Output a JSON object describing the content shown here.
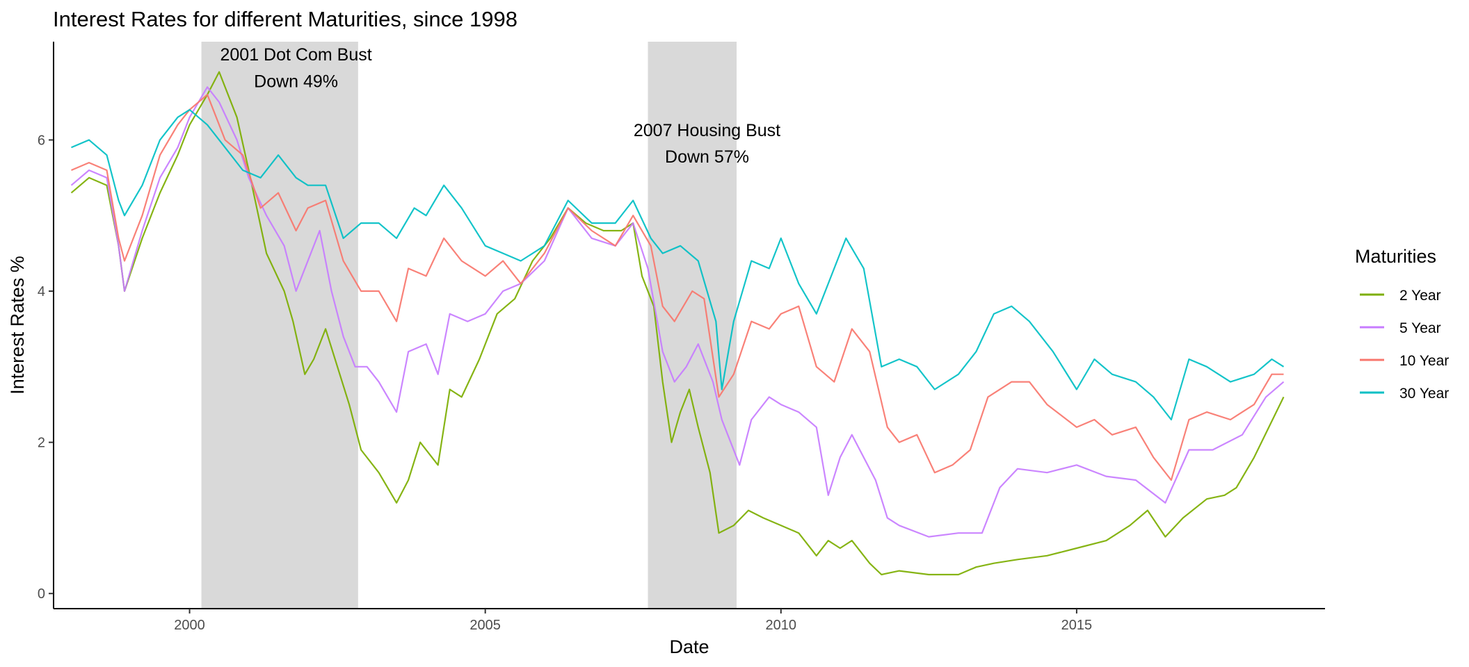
{
  "chart_data": {
    "type": "line",
    "title": "Interest Rates for different Maturities, since 1998",
    "xlabel": "Date",
    "ylabel": "Interest Rates %",
    "xlim": [
      1997.7,
      2019.2
    ],
    "ylim": [
      -0.2,
      7.3
    ],
    "xticks": [
      2000,
      2005,
      2010,
      2015
    ],
    "yticks": [
      0,
      2,
      4,
      6
    ],
    "legend": {
      "title": "Maturities",
      "position": "right"
    },
    "recessions": [
      {
        "start": 2000.2,
        "end": 2002.85,
        "label_line1": "2001 Dot Com Bust",
        "label_line2": "Down 49%",
        "label_x": 2001.8,
        "label_y1": 7.05,
        "label_y2": 6.7
      },
      {
        "start": 2007.75,
        "end": 2009.25,
        "label_line1": "2007 Housing Bust",
        "label_line2": "Down 57%",
        "label_x": 2008.75,
        "label_y1": 6.05,
        "label_y2": 5.7
      }
    ],
    "series": [
      {
        "name": "2 Year",
        "color": "#7CAE00",
        "x": [
          1998.0,
          1998.3,
          1998.6,
          1998.8,
          1998.9,
          1999.2,
          1999.5,
          1999.8,
          2000.0,
          2000.3,
          2000.5,
          2000.8,
          2001.0,
          2001.3,
          2001.6,
          2001.75,
          2001.95,
          2002.1,
          2002.3,
          2002.5,
          2002.7,
          2002.9,
          2003.2,
          2003.5,
          2003.7,
          2003.9,
          2004.2,
          2004.4,
          2004.6,
          2004.9,
          2005.2,
          2005.5,
          2005.8,
          2006.1,
          2006.4,
          2006.7,
          2007.0,
          2007.3,
          2007.5,
          2007.65,
          2007.85,
          2008.0,
          2008.15,
          2008.3,
          2008.45,
          2008.6,
          2008.8,
          2008.95,
          2009.2,
          2009.45,
          2009.7,
          2010.0,
          2010.3,
          2010.6,
          2010.8,
          2011.0,
          2011.2,
          2011.5,
          2011.7,
          2012.0,
          2012.5,
          2013.0,
          2013.3,
          2013.6,
          2014.0,
          2014.5,
          2015.0,
          2015.5,
          2015.9,
          2016.2,
          2016.5,
          2016.8,
          2017.2,
          2017.5,
          2017.7,
          2018.0,
          2018.5
        ],
        "values": [
          5.3,
          5.5,
          5.4,
          4.6,
          4.0,
          4.7,
          5.3,
          5.8,
          6.2,
          6.6,
          6.9,
          6.3,
          5.6,
          4.5,
          4.0,
          3.6,
          2.9,
          3.1,
          3.5,
          3.0,
          2.5,
          1.9,
          1.6,
          1.2,
          1.5,
          2.0,
          1.7,
          2.7,
          2.6,
          3.1,
          3.7,
          3.9,
          4.4,
          4.7,
          5.1,
          4.9,
          4.8,
          4.8,
          4.9,
          4.2,
          3.8,
          2.8,
          2.0,
          2.4,
          2.7,
          2.2,
          1.6,
          0.8,
          0.9,
          1.1,
          1.0,
          0.9,
          0.8,
          0.5,
          0.7,
          0.6,
          0.7,
          0.4,
          0.25,
          0.3,
          0.25,
          0.25,
          0.35,
          0.4,
          0.45,
          0.5,
          0.6,
          0.7,
          0.9,
          1.1,
          0.75,
          1.0,
          1.25,
          1.3,
          1.4,
          1.8,
          2.6
        ]
      },
      {
        "name": "5 Year",
        "color": "#C77CFF",
        "x": [
          1998.0,
          1998.3,
          1998.6,
          1998.8,
          1998.9,
          1999.2,
          1999.5,
          1999.8,
          2000.0,
          2000.3,
          2000.5,
          2000.8,
          2001.0,
          2001.3,
          2001.6,
          2001.8,
          2002.0,
          2002.2,
          2002.4,
          2002.6,
          2002.8,
          2003.0,
          2003.2,
          2003.5,
          2003.7,
          2004.0,
          2004.2,
          2004.4,
          2004.7,
          2005.0,
          2005.3,
          2005.6,
          2006.0,
          2006.4,
          2006.8,
          2007.2,
          2007.5,
          2007.75,
          2008.0,
          2008.2,
          2008.4,
          2008.6,
          2008.85,
          2009.0,
          2009.3,
          2009.5,
          2009.8,
          2010.0,
          2010.3,
          2010.6,
          2010.8,
          2011.0,
          2011.2,
          2011.6,
          2011.8,
          2012.0,
          2012.5,
          2013.0,
          2013.4,
          2013.7,
          2014.0,
          2014.5,
          2015.0,
          2015.5,
          2016.0,
          2016.5,
          2016.9,
          2017.3,
          2017.8,
          2018.2,
          2018.5
        ],
        "values": [
          5.4,
          5.6,
          5.5,
          4.6,
          4.0,
          4.8,
          5.5,
          5.9,
          6.3,
          6.7,
          6.5,
          6.0,
          5.5,
          5.0,
          4.6,
          4.0,
          4.4,
          4.8,
          4.0,
          3.4,
          3.0,
          3.0,
          2.8,
          2.4,
          3.2,
          3.3,
          2.9,
          3.7,
          3.6,
          3.7,
          4.0,
          4.1,
          4.4,
          5.1,
          4.7,
          4.6,
          4.9,
          4.3,
          3.2,
          2.8,
          3.0,
          3.3,
          2.8,
          2.3,
          1.7,
          2.3,
          2.6,
          2.5,
          2.4,
          2.2,
          1.3,
          1.8,
          2.1,
          1.5,
          1.0,
          0.9,
          0.75,
          0.8,
          0.8,
          1.4,
          1.65,
          1.6,
          1.7,
          1.55,
          1.5,
          1.2,
          1.9,
          1.9,
          2.1,
          2.6,
          2.8
        ]
      },
      {
        "name": "10 Year",
        "color": "#F8766D",
        "x": [
          1998.0,
          1998.3,
          1998.6,
          1998.8,
          1998.9,
          1999.2,
          1999.5,
          1999.8,
          2000.0,
          2000.3,
          2000.6,
          2000.9,
          2001.2,
          2001.5,
          2001.8,
          2002.0,
          2002.3,
          2002.6,
          2002.9,
          2003.2,
          2003.5,
          2003.7,
          2004.0,
          2004.3,
          2004.6,
          2005.0,
          2005.3,
          2005.6,
          2006.0,
          2006.4,
          2006.8,
          2007.2,
          2007.5,
          2007.8,
          2008.0,
          2008.2,
          2008.5,
          2008.7,
          2008.95,
          2009.2,
          2009.5,
          2009.8,
          2010.0,
          2010.3,
          2010.6,
          2010.9,
          2011.2,
          2011.5,
          2011.8,
          2012.0,
          2012.3,
          2012.6,
          2012.9,
          2013.2,
          2013.5,
          2013.9,
          2014.2,
          2014.5,
          2015.0,
          2015.3,
          2015.6,
          2016.0,
          2016.3,
          2016.6,
          2016.9,
          2017.2,
          2017.6,
          2018.0,
          2018.3,
          2018.5
        ],
        "values": [
          5.6,
          5.7,
          5.6,
          4.7,
          4.4,
          5.0,
          5.8,
          6.2,
          6.4,
          6.6,
          6.0,
          5.8,
          5.1,
          5.3,
          4.8,
          5.1,
          5.2,
          4.4,
          4.0,
          4.0,
          3.6,
          4.3,
          4.2,
          4.7,
          4.4,
          4.2,
          4.4,
          4.1,
          4.5,
          5.1,
          4.8,
          4.6,
          5.0,
          4.6,
          3.8,
          3.6,
          4.0,
          3.9,
          2.6,
          2.9,
          3.6,
          3.5,
          3.7,
          3.8,
          3.0,
          2.8,
          3.5,
          3.2,
          2.2,
          2.0,
          2.1,
          1.6,
          1.7,
          1.9,
          2.6,
          2.8,
          2.8,
          2.5,
          2.2,
          2.3,
          2.1,
          2.2,
          1.8,
          1.5,
          2.3,
          2.4,
          2.3,
          2.5,
          2.9,
          2.9
        ]
      },
      {
        "name": "30 Year",
        "color": "#00BFC4",
        "x": [
          1998.0,
          1998.3,
          1998.6,
          1998.8,
          1998.9,
          1999.2,
          1999.5,
          1999.8,
          2000.0,
          2000.3,
          2000.6,
          2000.9,
          2001.2,
          2001.5,
          2001.8,
          2002.0,
          2002.3,
          2002.6,
          2002.9,
          2003.2,
          2003.5,
          2003.8,
          2004.0,
          2004.3,
          2004.6,
          2005.0,
          2005.3,
          2005.6,
          2006.0,
          2006.4,
          2006.8,
          2007.2,
          2007.5,
          2007.8,
          2008.0,
          2008.3,
          2008.6,
          2008.9,
          2009.0,
          2009.2,
          2009.5,
          2009.8,
          2010.0,
          2010.3,
          2010.6,
          2010.9,
          2011.1,
          2011.4,
          2011.7,
          2012.0,
          2012.3,
          2012.6,
          2013.0,
          2013.3,
          2013.6,
          2013.9,
          2014.2,
          2014.6,
          2015.0,
          2015.3,
          2015.6,
          2016.0,
          2016.3,
          2016.6,
          2016.9,
          2017.2,
          2017.6,
          2018.0,
          2018.3,
          2018.5
        ],
        "values": [
          5.9,
          6.0,
          5.8,
          5.2,
          5.0,
          5.4,
          6.0,
          6.3,
          6.4,
          6.2,
          5.9,
          5.6,
          5.5,
          5.8,
          5.5,
          5.4,
          5.4,
          4.7,
          4.9,
          4.9,
          4.7,
          5.1,
          5.0,
          5.4,
          5.1,
          4.6,
          4.5,
          4.4,
          4.6,
          5.2,
          4.9,
          4.9,
          5.2,
          4.7,
          4.5,
          4.6,
          4.4,
          3.6,
          2.7,
          3.6,
          4.4,
          4.3,
          4.7,
          4.1,
          3.7,
          4.3,
          4.7,
          4.3,
          3.0,
          3.1,
          3.0,
          2.7,
          2.9,
          3.2,
          3.7,
          3.8,
          3.6,
          3.2,
          2.7,
          3.1,
          2.9,
          2.8,
          2.6,
          2.3,
          3.1,
          3.0,
          2.8,
          2.9,
          3.1,
          3.0
        ]
      }
    ]
  }
}
